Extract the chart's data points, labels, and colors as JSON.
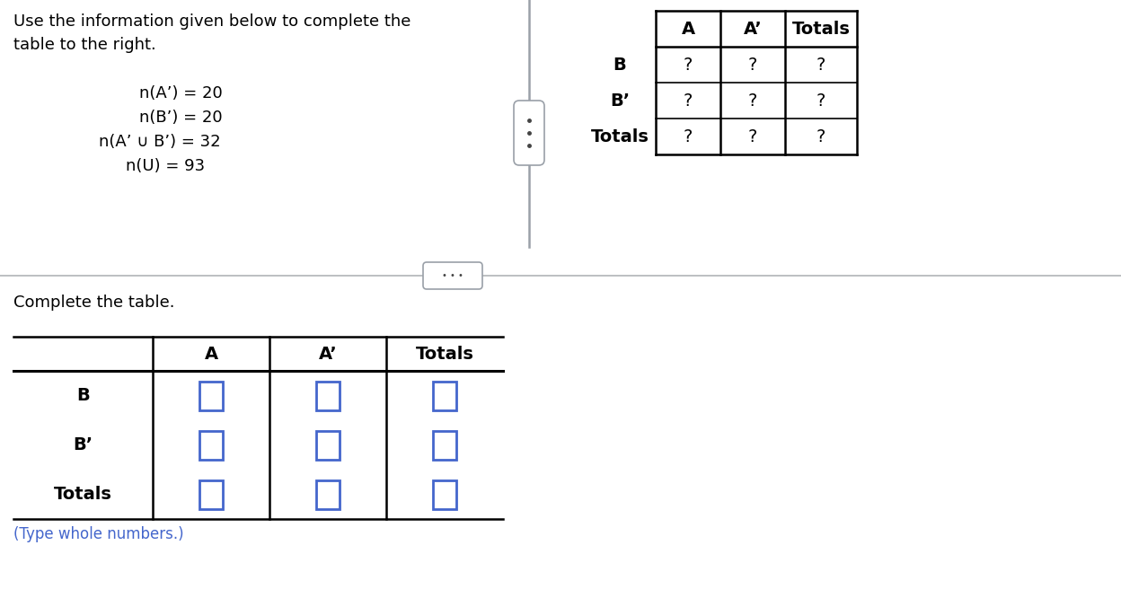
{
  "bg_color": "#ffffff",
  "title_text": "Use the information given below to complete the\ntable to the right.",
  "given_lines": [
    "n(A’) = 20",
    "n(B’) = 20",
    "n(A’ ∪ B’) = 32",
    "n(U) = 93"
  ],
  "top_table_cols": [
    "",
    "A",
    "A’",
    "Totals"
  ],
  "top_table_rows": [
    "B",
    "B’",
    "Totals"
  ],
  "top_table_values": [
    [
      "?",
      "?",
      "?"
    ],
    [
      "?",
      "?",
      "?"
    ],
    [
      "?",
      "?",
      "?"
    ]
  ],
  "divider_label": "• • •",
  "bottom_title": "Complete the table.",
  "bottom_table_cols": [
    "",
    "A",
    "A’",
    "Totals"
  ],
  "bottom_table_rows": [
    "B",
    "B’",
    "Totals"
  ],
  "box_color": "#4466cc",
  "type_note": "(Type whole numbers.)"
}
